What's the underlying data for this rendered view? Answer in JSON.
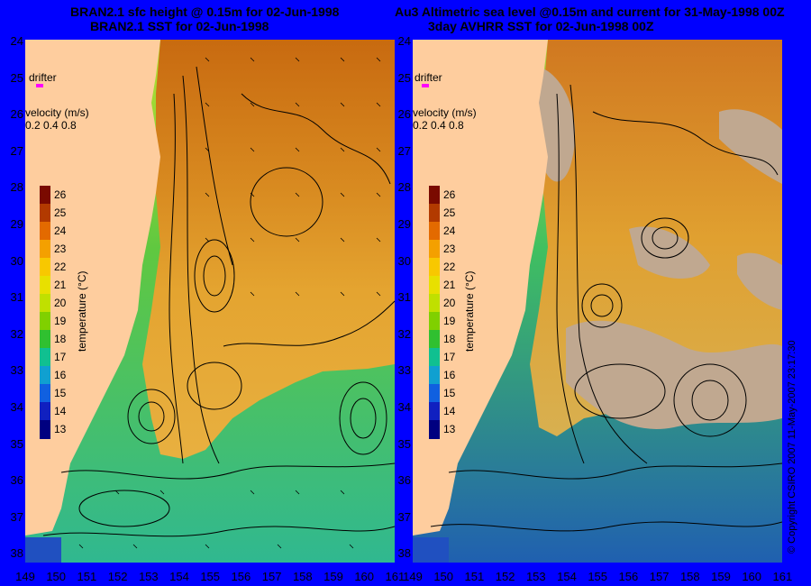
{
  "left_panel": {
    "title_line1": "BRAN2.1 sfc height @ 0.15m for 02-Jun-1998",
    "title_line2": "BRAN2.1 SST for 02-Jun-1998"
  },
  "right_panel": {
    "title_line1": "Au3 Altimetric sea level  @0.15m and current for 31-May-1998 00Z",
    "title_line2": "3day AVHRR SST for 02-Jun-1998 00Z",
    "copyright": "© Copyright CSIRO 2007  11-May-2007 23:17:30"
  },
  "legend": {
    "drifter_label": "drifter",
    "velocity_label": "velocity (m/s)",
    "velocity_scale": "0.2 0.4 0.8"
  },
  "colorbar": {
    "title": "temperature (°C)",
    "ticks": [
      "26",
      "25",
      "24",
      "23",
      "22",
      "21",
      "20",
      "19",
      "18",
      "17",
      "16",
      "15",
      "14",
      "13"
    ],
    "colors": [
      "#7a0a00",
      "#b23a00",
      "#e36a00",
      "#f4a000",
      "#f8c800",
      "#e8e000",
      "#c0e000",
      "#80d000",
      "#30c030",
      "#10c090",
      "#10a0d0",
      "#1060e0",
      "#1020c0",
      "#000080"
    ]
  },
  "axes": {
    "lat_labels": [
      "24",
      "25",
      "26",
      "27",
      "28",
      "29",
      "30",
      "31",
      "32",
      "33",
      "34",
      "35",
      "36",
      "37",
      "38"
    ],
    "lon_labels": [
      "149",
      "150",
      "151",
      "152",
      "153",
      "154",
      "155",
      "156",
      "157",
      "158",
      "159",
      "160",
      "161"
    ]
  },
  "colors": {
    "land": "#fecd9e",
    "cloud": "#c0a890",
    "deep_water": "#2040c0",
    "drifter_marker": "#ff00ff"
  }
}
